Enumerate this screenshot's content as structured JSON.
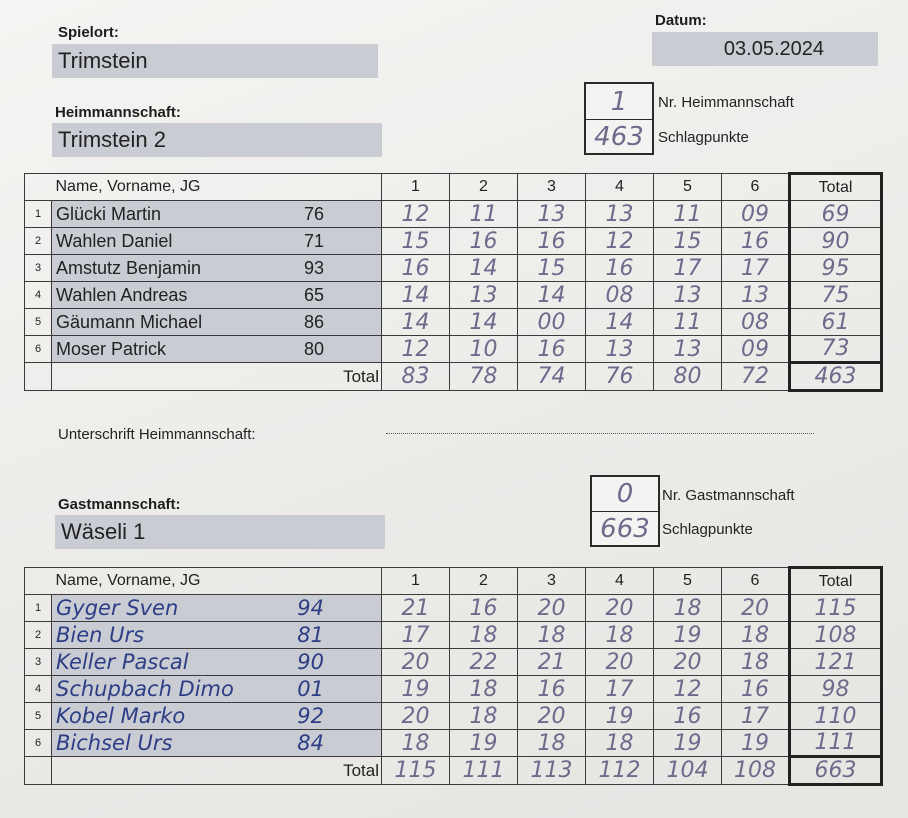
{
  "header": {
    "spielort_label": "Spielort:",
    "spielort_value": "Trimstein",
    "datum_label": "Datum:",
    "datum_value": "03.05.2024"
  },
  "home": {
    "label": "Heimmannschaft:",
    "team": "Trimstein 2",
    "nr_value": "1",
    "nr_label": "Nr. Heimmannschaft",
    "points_value": "463",
    "points_label": "Schlagpunkte",
    "table": {
      "col_name": "Name, Vorname, JG",
      "rounds": [
        "1",
        "2",
        "3",
        "4",
        "5",
        "6"
      ],
      "col_total": "Total",
      "rows": [
        {
          "nr": "1",
          "name": "Glücki Martin",
          "jg": "76",
          "scores": [
            "12",
            "11",
            "13",
            "13",
            "11",
            "09"
          ],
          "total": "69"
        },
        {
          "nr": "2",
          "name": "Wahlen Daniel",
          "jg": "71",
          "scores": [
            "15",
            "16",
            "16",
            "12",
            "15",
            "16"
          ],
          "total": "90"
        },
        {
          "nr": "3",
          "name": "Amstutz Benjamin",
          "jg": "93",
          "scores": [
            "16",
            "14",
            "15",
            "16",
            "17",
            "17"
          ],
          "total": "95"
        },
        {
          "nr": "4",
          "name": "Wahlen Andreas",
          "jg": "65",
          "scores": [
            "14",
            "13",
            "14",
            "08",
            "13",
            "13"
          ],
          "total": "75"
        },
        {
          "nr": "5",
          "name": "Gäumann Michael",
          "jg": "86",
          "scores": [
            "14",
            "14",
            "00",
            "14",
            "11",
            "08"
          ],
          "total": "61"
        },
        {
          "nr": "6",
          "name": "Moser Patrick",
          "jg": "80",
          "scores": [
            "12",
            "10",
            "16",
            "13",
            "13",
            "09"
          ],
          "total": "73"
        }
      ],
      "total_label": "Total",
      "round_totals": [
        "83",
        "78",
        "74",
        "76",
        "80",
        "72"
      ],
      "grand_total": "463"
    }
  },
  "signature": {
    "label": "Unterschrift Heimmannschaft:"
  },
  "guest": {
    "label": "Gastmannschaft:",
    "team": "Wäseli 1",
    "nr_value": "0",
    "nr_label": "Nr. Gastmannschaft",
    "points_value": "663",
    "points_label": "Schlagpunkte",
    "table": {
      "col_name": "Name, Vorname, JG",
      "rounds": [
        "1",
        "2",
        "3",
        "4",
        "5",
        "6"
      ],
      "col_total": "Total",
      "rows": [
        {
          "nr": "1",
          "name": "Gyger Sven",
          "jg": "94",
          "scores": [
            "21",
            "16",
            "20",
            "20",
            "18",
            "20"
          ],
          "total": "115"
        },
        {
          "nr": "2",
          "name": "Bien Urs",
          "jg": "81",
          "scores": [
            "17",
            "18",
            "18",
            "18",
            "19",
            "18"
          ],
          "total": "108"
        },
        {
          "nr": "3",
          "name": "Keller Pascal",
          "jg": "90",
          "scores": [
            "20",
            "22",
            "21",
            "20",
            "20",
            "18"
          ],
          "total": "121"
        },
        {
          "nr": "4",
          "name": "Schupbach Dimo",
          "jg": "01",
          "scores": [
            "19",
            "18",
            "16",
            "17",
            "12",
            "16"
          ],
          "total": "98"
        },
        {
          "nr": "5",
          "name": "Kobel Marko",
          "jg": "92",
          "scores": [
            "20",
            "18",
            "20",
            "19",
            "16",
            "17"
          ],
          "total": "110"
        },
        {
          "nr": "6",
          "name": "Bichsel Urs",
          "jg": "84",
          "scores": [
            "18",
            "19",
            "18",
            "18",
            "19",
            "19"
          ],
          "total": "111"
        }
      ],
      "total_label": "Total",
      "round_totals": [
        "115",
        "111",
        "113",
        "112",
        "104",
        "108"
      ],
      "grand_total": "663"
    }
  }
}
